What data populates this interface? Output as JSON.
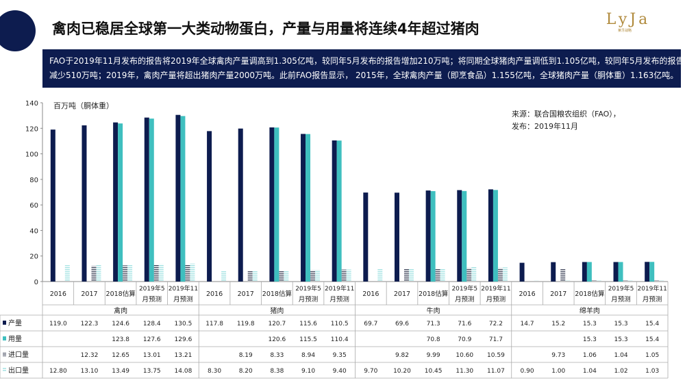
{
  "header": {
    "title": "禽肉已稳居全球第一大类动物蛋白，产量与用量将连续4年超过猪肉",
    "logo": "LyJa",
    "logo_sub": "莱牙战略"
  },
  "summary": {
    "line1": "FAO于2019年11月发布的报告将2019年全球禽肉产量调高到1.305亿吨，较同年5月发布的报告增加210万吨；将同期全球猪肉产量调低到1.105亿吨，较同年5月发布的报告",
    "line2": "减少510万吨；2019年，禽肉产量将超出猪肉产量2000万吨。此前FAO报告显示， 2015年，全球禽肉产量（即烹食品）1.155亿吨，全球猪肉产量（胴体重）1.163亿吨。"
  },
  "colors": {
    "production": "#0d1c4f",
    "consumption": "#3fbfbf",
    "import": "#4a4f63",
    "export": "#a6e3e3",
    "brand": "#0d1c4f"
  },
  "chart_data": {
    "type": "bar",
    "unit_label": "百万吨（胴体重）",
    "source_line1": "来源：联合国粮农组织（FAO），",
    "source_line2": "发布：2019年11月",
    "ylim": [
      0,
      140
    ],
    "yticks": [
      0,
      20,
      40,
      60,
      80,
      100,
      120,
      140
    ],
    "groups": [
      {
        "name": "禽肉",
        "periods": [
          [
            "2016"
          ],
          [
            "2017"
          ],
          [
            "2018估算"
          ],
          [
            "2019年5",
            "月预测"
          ],
          [
            "2019年11",
            "月预测"
          ]
        ],
        "series": [
          {
            "name": "产量",
            "values": [
              119.0,
              122.3,
              124.6,
              128.4,
              130.5
            ],
            "labels": [
              "119.0",
              "122.3",
              "124.6",
              "128.4",
              "130.5"
            ]
          },
          {
            "name": "用量",
            "values": [
              null,
              null,
              123.8,
              127.6,
              129.6
            ],
            "labels": [
              "",
              "",
              "123.8",
              "127.6",
              "129.6"
            ]
          },
          {
            "name": "进口量",
            "values": [
              null,
              12.32,
              12.65,
              13.01,
              13.21
            ],
            "labels": [
              "",
              "12.32",
              "12.65",
              "13.01",
              "13.21"
            ]
          },
          {
            "name": "出口量",
            "values": [
              12.8,
              13.1,
              13.49,
              13.75,
              14.08
            ],
            "labels": [
              "12.80",
              "13.10",
              "13.49",
              "13.75",
              "14.08"
            ]
          }
        ]
      },
      {
        "name": "猪肉",
        "periods": [
          [
            "2016"
          ],
          [
            "2017"
          ],
          [
            "2018估算"
          ],
          [
            "2019年5",
            "月预测"
          ],
          [
            "2019年11",
            "月预测"
          ]
        ],
        "series": [
          {
            "name": "产量",
            "values": [
              117.8,
              119.8,
              120.7,
              115.6,
              110.5
            ],
            "labels": [
              "117.8",
              "119.8",
              "120.7",
              "115.6",
              "110.5"
            ]
          },
          {
            "name": "用量",
            "values": [
              null,
              null,
              120.6,
              115.5,
              110.4
            ],
            "labels": [
              "",
              "",
              "120.6",
              "115.5",
              "110.4"
            ]
          },
          {
            "name": "进口量",
            "values": [
              null,
              8.19,
              8.33,
              8.94,
              9.35
            ],
            "labels": [
              "",
              "8.19",
              "8.33",
              "8.94",
              "9.35"
            ]
          },
          {
            "name": "出口量",
            "values": [
              8.3,
              8.2,
              8.38,
              9.1,
              9.4
            ],
            "labels": [
              "8.30",
              "8.20",
              "8.38",
              "9.10",
              "9.40"
            ]
          }
        ]
      },
      {
        "name": "牛肉",
        "periods": [
          [
            "2016"
          ],
          [
            "2017"
          ],
          [
            "2018估算"
          ],
          [
            "2019年5",
            "月预测"
          ],
          [
            "2019年11",
            "月预测"
          ]
        ],
        "series": [
          {
            "name": "产量",
            "values": [
              69.7,
              69.6,
              71.3,
              71.6,
              72.2
            ],
            "labels": [
              "69.7",
              "69.6",
              "71.3",
              "71.6",
              "72.2"
            ]
          },
          {
            "name": "用量",
            "values": [
              null,
              null,
              70.8,
              70.9,
              71.7
            ],
            "labels": [
              "",
              "",
              "70.8",
              "70.9",
              "71.7"
            ]
          },
          {
            "name": "进口量",
            "values": [
              null,
              9.82,
              9.99,
              10.6,
              10.59
            ],
            "labels": [
              "",
              "9.82",
              "9.99",
              "10.60",
              "10.59"
            ]
          },
          {
            "name": "出口量",
            "values": [
              9.7,
              10.2,
              10.45,
              11.3,
              11.07
            ],
            "labels": [
              "9.70",
              "10.20",
              "10.45",
              "11.30",
              "11.07"
            ]
          }
        ]
      },
      {
        "name": "绵羊肉",
        "periods": [
          [
            "2016"
          ],
          [
            "2017"
          ],
          [
            "2018估算"
          ],
          [
            "2019年5",
            "月预测"
          ],
          [
            "2019年11",
            "月预测"
          ]
        ],
        "series": [
          {
            "name": "产量",
            "values": [
              14.7,
              15.2,
              15.3,
              15.3,
              15.4
            ],
            "labels": [
              "14.7",
              "15.2",
              "15.3",
              "15.3",
              "15.4"
            ]
          },
          {
            "name": "用量",
            "values": [
              null,
              null,
              15.3,
              15.3,
              15.4
            ],
            "labels": [
              "",
              "",
              "15.3",
              "15.3",
              "15.4"
            ]
          },
          {
            "name": "进口量",
            "values": [
              null,
              9.73,
              1.06,
              1.04,
              1.05
            ],
            "labels": [
              "",
              "9.73",
              "1.06",
              "1.04",
              "1.05"
            ]
          },
          {
            "name": "出口量",
            "values": [
              0.9,
              1.0,
              1.04,
              1.02,
              1.03
            ],
            "labels": [
              "0.90",
              "1.00",
              "1.04",
              "1.02",
              "1.03"
            ]
          }
        ]
      }
    ]
  }
}
